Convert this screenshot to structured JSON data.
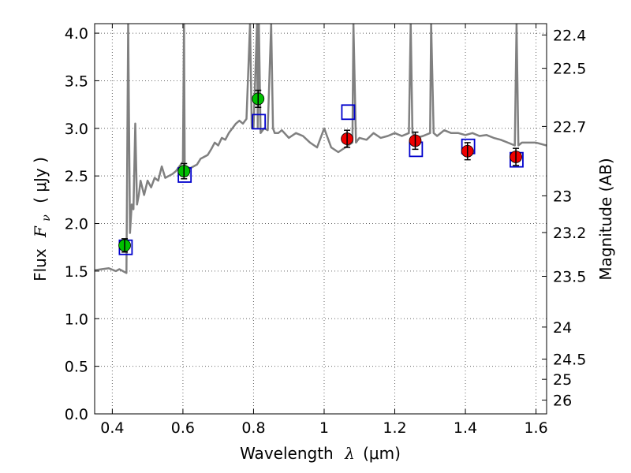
{
  "chart_data": {
    "type": "scatter",
    "xlabel_text": "Wavelength",
    "xlabel_symbol": "λ",
    "xlabel_unit": "(μm)",
    "ylabel_text": "Flux",
    "ylabel_symbol": "F",
    "ylabel_subscript": "ν",
    "ylabel_unit": "( μJy )",
    "y2label": "Magnitude (AB)",
    "xlim": [
      0.35,
      1.63
    ],
    "ylim": [
      0.0,
      4.1
    ],
    "grid": true,
    "xticks": [
      0.4,
      0.6,
      0.8,
      1.0,
      1.2,
      1.4,
      1.6
    ],
    "xtick_labels": [
      "0.4",
      "0.6",
      "0.8",
      "1",
      "1.2",
      "1.4",
      "1.6"
    ],
    "yticks": [
      0.0,
      0.5,
      1.0,
      1.5,
      2.0,
      2.5,
      3.0,
      3.5,
      4.0
    ],
    "ytick_labels": [
      "0.0",
      "0.5",
      "1.0",
      "1.5",
      "2.0",
      "2.5",
      "3.0",
      "3.5",
      "4.0"
    ],
    "mag_tick_labels": [
      "22.4",
      "22.5",
      "22.7",
      "23",
      "23.2",
      "23.5",
      "24",
      "24.5",
      "25",
      "26"
    ],
    "colors": {
      "spectrum": "#808080",
      "green_points": "#00c000",
      "red_points": "#ee0000",
      "model_squares": "#0000cc",
      "errorbars": "#000000",
      "grid": "#666666"
    },
    "series": [
      {
        "kind": "spectrum_line",
        "x": [
          0.35,
          0.37,
          0.39,
          0.41,
          0.42,
          0.43,
          0.44,
          0.445,
          0.45,
          0.455,
          0.46,
          0.465,
          0.47,
          0.475,
          0.48,
          0.49,
          0.5,
          0.51,
          0.52,
          0.53,
          0.54,
          0.55,
          0.56,
          0.57,
          0.58,
          0.59,
          0.6,
          0.603,
          0.605,
          0.607,
          0.61,
          0.62,
          0.63,
          0.64,
          0.65,
          0.66,
          0.67,
          0.68,
          0.69,
          0.7,
          0.71,
          0.72,
          0.73,
          0.74,
          0.75,
          0.76,
          0.77,
          0.78,
          0.79,
          0.795,
          0.8,
          0.81,
          0.812,
          0.815,
          0.82,
          0.83,
          0.84,
          0.85,
          0.855,
          0.86,
          0.87,
          0.88,
          0.9,
          0.92,
          0.94,
          0.96,
          0.98,
          1.0,
          1.02,
          1.04,
          1.06,
          1.08,
          1.083,
          1.09,
          1.1,
          1.12,
          1.14,
          1.16,
          1.18,
          1.2,
          1.22,
          1.24,
          1.245,
          1.25,
          1.26,
          1.28,
          1.3,
          1.303,
          1.31,
          1.32,
          1.34,
          1.36,
          1.38,
          1.4,
          1.42,
          1.44,
          1.46,
          1.48,
          1.5,
          1.52,
          1.54,
          1.545,
          1.55,
          1.56,
          1.58,
          1.6,
          1.63
        ],
        "y": [
          1.51,
          1.52,
          1.53,
          1.5,
          1.52,
          1.5,
          1.48,
          4.1,
          1.9,
          2.2,
          2.15,
          3.05,
          2.2,
          2.3,
          2.45,
          2.3,
          2.45,
          2.38,
          2.48,
          2.45,
          2.6,
          2.48,
          2.5,
          2.52,
          2.55,
          2.6,
          2.65,
          4.1,
          2.6,
          2.55,
          2.6,
          2.58,
          2.6,
          2.62,
          2.68,
          2.7,
          2.72,
          2.78,
          2.85,
          2.82,
          2.9,
          2.88,
          2.95,
          3.0,
          3.05,
          3.08,
          3.05,
          3.1,
          4.1,
          3.0,
          3.0,
          4.1,
          3.0,
          4.1,
          2.95,
          3.0,
          2.98,
          4.1,
          3.0,
          2.95,
          2.95,
          2.98,
          2.9,
          2.95,
          2.92,
          2.85,
          2.8,
          3.0,
          2.8,
          2.75,
          2.8,
          2.85,
          4.1,
          2.85,
          2.9,
          2.88,
          2.95,
          2.9,
          2.92,
          2.95,
          2.92,
          2.95,
          4.1,
          2.95,
          2.9,
          2.92,
          2.95,
          4.1,
          2.95,
          2.92,
          2.98,
          2.95,
          2.95,
          2.93,
          2.95,
          2.92,
          2.93,
          2.9,
          2.88,
          2.85,
          2.82,
          4.1,
          2.82,
          2.85,
          2.85,
          2.85,
          2.82
        ]
      },
      {
        "kind": "observed_green",
        "x": [
          0.435,
          0.603,
          0.813
        ],
        "y": [
          1.77,
          2.55,
          3.31
        ],
        "err": [
          0.07,
          0.08,
          0.09
        ]
      },
      {
        "kind": "observed_red",
        "x": [
          1.065,
          1.258,
          1.406,
          1.543
        ],
        "y": [
          2.89,
          2.87,
          2.76,
          2.7
        ],
        "err": [
          0.09,
          0.09,
          0.09,
          0.09
        ]
      },
      {
        "kind": "model_squares",
        "x": [
          0.438,
          0.605,
          0.815,
          1.068,
          1.26,
          1.408,
          1.545
        ],
        "y": [
          1.75,
          2.51,
          3.07,
          3.17,
          2.78,
          2.81,
          2.67
        ]
      }
    ]
  }
}
